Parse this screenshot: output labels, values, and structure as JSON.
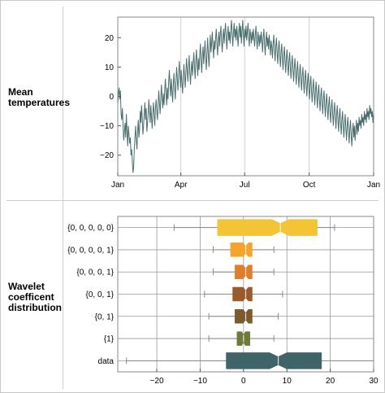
{
  "rows": [
    {
      "label_lines": [
        "Mean",
        "temperatures"
      ]
    },
    {
      "label_lines": [
        "Wavelet",
        "coefficent",
        "distribution"
      ]
    }
  ],
  "chart_data": [
    {
      "type": "line",
      "title": "",
      "xlabel": "",
      "ylabel": "",
      "x_ticks": [
        "Jan",
        "Apr",
        "Jul",
        "Oct",
        "Jan"
      ],
      "x_tick_days": [
        0,
        90,
        181,
        273,
        365
      ],
      "y_ticks": [
        -20,
        -10,
        0,
        10,
        20
      ],
      "ylim": [
        -27,
        27
      ],
      "grid": "vertical",
      "line_color": "#4a6e6e",
      "series": [
        {
          "values": [
            -2,
            1,
            3,
            -1,
            2,
            -6,
            -8,
            -4,
            -10,
            -15,
            -12,
            -9,
            -14,
            -6,
            -12,
            -17,
            -10,
            -13,
            -16,
            -14,
            -20,
            -18,
            -22,
            -26,
            -24,
            -18,
            -14,
            -10,
            -15,
            -18,
            -12,
            -8,
            -14,
            -11,
            -5,
            -9,
            -3,
            -7,
            -13,
            -10,
            -6,
            -2,
            -8,
            -4,
            -12,
            -9,
            -6,
            -1,
            -5,
            -9,
            -3,
            -7,
            -11,
            -6,
            -2,
            -6,
            -10,
            -4,
            -1,
            -5,
            -8,
            -3,
            2,
            -2,
            -6,
            -1,
            4,
            0,
            -4,
            1,
            -3,
            2,
            6,
            1,
            -3,
            3,
            -1,
            5,
            9,
            4,
            0,
            6,
            2,
            -2,
            4,
            8,
            3,
            -1,
            5,
            10,
            6,
            2,
            7,
            12,
            8,
            3,
            9,
            5,
            1,
            6,
            11,
            7,
            3,
            8,
            13,
            9,
            5,
            10,
            14,
            8,
            4,
            9,
            12,
            7,
            11,
            15,
            10,
            6,
            12,
            16,
            11,
            7,
            13,
            9,
            14,
            18,
            12,
            8,
            14,
            17,
            11,
            15,
            19,
            13,
            9,
            15,
            20,
            14,
            10,
            16,
            21,
            15,
            18,
            22,
            17,
            13,
            19,
            16,
            20,
            23,
            18,
            14,
            19,
            22,
            17,
            21,
            24,
            19,
            15,
            20,
            23,
            18,
            22,
            25,
            20,
            16,
            21,
            24,
            19,
            22,
            18,
            23,
            26,
            21,
            17,
            22,
            25,
            20,
            23,
            19,
            24,
            21,
            17,
            22,
            25,
            20,
            24,
            18,
            22,
            26,
            21,
            17,
            23,
            20,
            24,
            19,
            22,
            25,
            20,
            17,
            23,
            21,
            18,
            22,
            19,
            23,
            20,
            17,
            21,
            24,
            19,
            16,
            22,
            20,
            17,
            21,
            18,
            22,
            19,
            15,
            20,
            23,
            18,
            14,
            19,
            22,
            17,
            20,
            16,
            21,
            18,
            14,
            19,
            17,
            13,
            18,
            21,
            16,
            12,
            17,
            20,
            15,
            11,
            16,
            19,
            14,
            10,
            15,
            18,
            13,
            9,
            14,
            17,
            12,
            8,
            13,
            16,
            11,
            7,
            12,
            15,
            10,
            6,
            11,
            14,
            9,
            5,
            10,
            13,
            8,
            4,
            9,
            12,
            7,
            3,
            8,
            11,
            6,
            2,
            7,
            10,
            5,
            1,
            6,
            9,
            4,
            0,
            5,
            8,
            3,
            -1,
            4,
            7,
            2,
            -2,
            3,
            6,
            1,
            -3,
            2,
            5,
            0,
            -4,
            1,
            4,
            -1,
            -5,
            0,
            3,
            -2,
            -6,
            -1,
            2,
            -3,
            -7,
            -2,
            1,
            -4,
            -8,
            -3,
            0,
            -5,
            -9,
            -4,
            -1,
            -6,
            -10,
            -5,
            -2,
            -7,
            -11,
            -6,
            -3,
            -8,
            -12,
            -7,
            -4,
            -9,
            -13,
            -8,
            -5,
            -10,
            -14,
            -9,
            -6,
            -11,
            -15,
            -10,
            -7,
            -12,
            -16,
            -11,
            -8,
            -13,
            -17,
            -12,
            -9,
            -14,
            -10,
            -15,
            -11,
            -8,
            -13,
            -9,
            -12,
            -7,
            -10,
            -8,
            -11,
            -6,
            -9,
            -7,
            -10,
            -5,
            -8,
            -6,
            -9,
            -4,
            -7,
            -5,
            -8,
            -3,
            -6,
            -4,
            -7,
            -5,
            -9,
            -6
          ]
        }
      ]
    },
    {
      "type": "box",
      "title": "",
      "xlabel": "",
      "ylabel": "",
      "categories": [
        "{0, 0, 0, 0, 0}",
        "{0, 0, 0, 0, 1}",
        "{0, 0, 0, 1}",
        "{0, 0, 1}",
        "{0, 1}",
        "{1}",
        "data"
      ],
      "x_ticks": [
        -20,
        -10,
        0,
        10,
        20,
        30
      ],
      "xlim": [
        -29,
        30
      ],
      "grid": "both",
      "boxes": [
        {
          "whisker_low": -16,
          "q1": -6,
          "median": 8.5,
          "q3": 17,
          "whisker_high": 21,
          "notch": 2,
          "color": "#f4c437"
        },
        {
          "whisker_low": -7,
          "q1": -3,
          "median": 0.5,
          "q3": 2,
          "whisker_high": 7,
          "notch": 0.6,
          "color": "#f2a52a"
        },
        {
          "whisker_low": -7,
          "q1": -2,
          "median": 0.5,
          "q3": 2,
          "whisker_high": 7,
          "notch": 0.6,
          "color": "#df7f2b"
        },
        {
          "whisker_low": -9,
          "q1": -2.5,
          "median": 0.5,
          "q3": 2,
          "whisker_high": 9,
          "notch": 0.6,
          "color": "#9a5a2a"
        },
        {
          "whisker_low": -8,
          "q1": -2,
          "median": 0.5,
          "q3": 2,
          "whisker_high": 8,
          "notch": 0.6,
          "color": "#7b5a2e"
        },
        {
          "whisker_low": -8,
          "q1": -1.5,
          "median": 0,
          "q3": 1.5,
          "whisker_high": 7,
          "notch": 0.4,
          "color": "#6e7a3a"
        },
        {
          "whisker_low": -27,
          "q1": -4,
          "median": 8,
          "q3": 18,
          "whisker_high": 30,
          "notch": 2,
          "color": "#3f6468"
        }
      ]
    }
  ]
}
